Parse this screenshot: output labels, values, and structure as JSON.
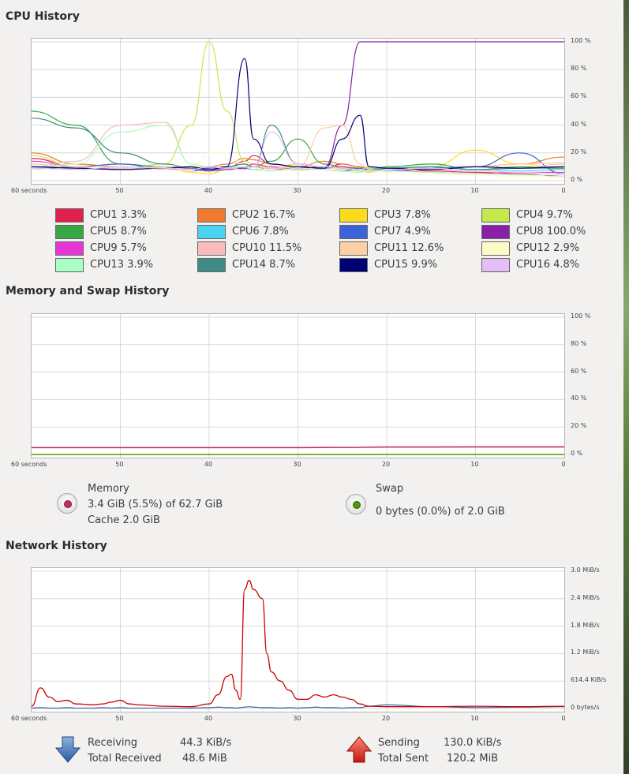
{
  "cpu": {
    "title": "CPU History",
    "y_ticks": [
      "100 %",
      "80 %",
      "60 %",
      "40 %",
      "20 %",
      "0 %"
    ],
    "x_ticks": [
      "60 seconds",
      "50",
      "40",
      "30",
      "20",
      "10",
      "0"
    ],
    "legend": [
      {
        "label": "CPU1  3.3%",
        "color": "#e0214b"
      },
      {
        "label": "CPU2  16.7%",
        "color": "#f07a30"
      },
      {
        "label": "CPU3  7.8%",
        "color": "#fbdc1c"
      },
      {
        "label": "CPU4  9.7%",
        "color": "#c5e84b"
      },
      {
        "label": "CPU5  8.7%",
        "color": "#35a845"
      },
      {
        "label": "CPU6  7.8%",
        "color": "#4ad3f0"
      },
      {
        "label": "CPU7  4.9%",
        "color": "#3c62d8"
      },
      {
        "label": "CPU8  100.0%",
        "color": "#8a20a8"
      },
      {
        "label": "CPU9  5.7%",
        "color": "#e836d6"
      },
      {
        "label": "CPU10  11.5%",
        "color": "#f9bcbc"
      },
      {
        "label": "CPU11  12.6%",
        "color": "#fccfa5"
      },
      {
        "label": "CPU12  2.9%",
        "color": "#fefac8"
      },
      {
        "label": "CPU13  3.9%",
        "color": "#aaffc3"
      },
      {
        "label": "CPU14  8.7%",
        "color": "#3f8c86"
      },
      {
        "label": "CPU15  9.9%",
        "color": "#000075"
      },
      {
        "label": "CPU16  4.8%",
        "color": "#e6bef7"
      }
    ]
  },
  "memory": {
    "title": "Memory and Swap History",
    "y_ticks": [
      "100 %",
      "80 %",
      "60 %",
      "40 %",
      "20 %",
      "0 %"
    ],
    "x_ticks": [
      "60 seconds",
      "50",
      "40",
      "30",
      "20",
      "10",
      "0"
    ],
    "memory_label": "Memory",
    "memory_value": "3.4 GiB (5.5%) of 62.7 GiB",
    "memory_cache": "Cache 2.0 GiB",
    "memory_color": "#c52a63",
    "swap_label": "Swap",
    "swap_value": "0 bytes (0.0%) of 2.0 GiB",
    "swap_color": "#4e9a06"
  },
  "network": {
    "title": "Network History",
    "y_ticks": [
      "3.0 MiB/s",
      "2.4 MiB/s",
      "1.8 MiB/s",
      "1.2 MiB/s",
      "614.4 KiB/s",
      "0 bytes/s"
    ],
    "x_ticks": [
      "60 seconds",
      "50",
      "40",
      "30",
      "20",
      "10",
      "0"
    ],
    "receiving_label": "Receiving",
    "receiving_value": "44.3 KiB/s",
    "total_received_label": "Total Received",
    "total_received_value": "48.6 MiB",
    "sending_label": "Sending",
    "sending_value": "130.0 KiB/s",
    "total_sent_label": "Total Sent",
    "total_sent_value": "120.2 MiB",
    "receive_color": "#3465a4",
    "send_color": "#cc0000"
  },
  "chart_data": [
    {
      "type": "line",
      "x": [
        60,
        55,
        50,
        45,
        42,
        40,
        38,
        36,
        35,
        33,
        30,
        27,
        25,
        23,
        22,
        20,
        15,
        10,
        5,
        0
      ],
      "ylim": [
        0,
        100
      ],
      "xlim": [
        60,
        0
      ],
      "series": [
        {
          "name": "CPU1",
          "values": [
            16,
            10,
            8,
            10,
            9,
            8,
            9,
            14,
            18,
            12,
            10,
            9,
            12,
            10,
            8,
            9,
            7,
            6,
            5,
            3
          ]
        },
        {
          "name": "CPU2",
          "values": [
            20,
            12,
            10,
            8,
            9,
            10,
            12,
            16,
            15,
            12,
            10,
            14,
            12,
            10,
            9,
            8,
            9,
            10,
            12,
            17
          ]
        },
        {
          "name": "CPU3",
          "values": [
            12,
            8,
            9,
            10,
            6,
            5,
            8,
            10,
            12,
            9,
            12,
            10,
            8,
            7,
            6,
            8,
            10,
            22,
            12,
            8
          ]
        },
        {
          "name": "CPU4",
          "values": [
            18,
            10,
            8,
            12,
            40,
            100,
            50,
            14,
            12,
            10,
            8,
            9,
            10,
            8,
            9,
            7,
            8,
            10,
            9,
            10
          ]
        },
        {
          "name": "CPU5",
          "values": [
            50,
            40,
            12,
            10,
            8,
            9,
            10,
            12,
            10,
            14,
            30,
            12,
            10,
            9,
            8,
            10,
            12,
            8,
            10,
            9
          ]
        },
        {
          "name": "CPU6",
          "values": [
            10,
            8,
            9,
            10,
            8,
            7,
            9,
            10,
            8,
            7,
            9,
            8,
            7,
            6,
            8,
            9,
            10,
            8,
            7,
            8
          ]
        },
        {
          "name": "CPU7",
          "values": [
            8,
            10,
            12,
            8,
            7,
            9,
            10,
            9,
            8,
            9,
            10,
            8,
            7,
            9,
            8,
            7,
            9,
            10,
            20,
            5
          ]
        },
        {
          "name": "CPU8",
          "values": [
            10,
            9,
            8,
            9,
            8,
            7,
            8,
            9,
            10,
            8,
            9,
            10,
            40,
            100,
            100,
            100,
            100,
            100,
            100,
            100
          ]
        },
        {
          "name": "CPU9",
          "values": [
            14,
            10,
            8,
            9,
            10,
            8,
            9,
            10,
            12,
            10,
            8,
            9,
            10,
            8,
            7,
            8,
            6,
            5,
            6,
            6
          ]
        },
        {
          "name": "CPU10",
          "values": [
            10,
            14,
            40,
            42,
            12,
            10,
            9,
            10,
            8,
            9,
            8,
            10,
            9,
            8,
            10,
            9,
            8,
            7,
            9,
            12
          ]
        },
        {
          "name": "CPU11",
          "values": [
            12,
            10,
            9,
            10,
            8,
            10,
            9,
            12,
            10,
            9,
            10,
            38,
            40,
            12,
            10,
            9,
            8,
            10,
            12,
            13
          ]
        },
        {
          "name": "CPU12",
          "values": [
            8,
            9,
            10,
            8,
            7,
            20,
            20,
            10,
            9,
            8,
            7,
            8,
            9,
            8,
            7,
            6,
            5,
            4,
            3,
            3
          ]
        },
        {
          "name": "CPU13",
          "values": [
            10,
            12,
            35,
            40,
            12,
            10,
            9,
            10,
            8,
            7,
            9,
            8,
            7,
            6,
            8,
            7,
            6,
            5,
            4,
            4
          ]
        },
        {
          "name": "CPU14",
          "values": [
            45,
            38,
            20,
            12,
            9,
            8,
            10,
            12,
            10,
            40,
            12,
            10,
            9,
            8,
            7,
            9,
            10,
            8,
            9,
            9
          ]
        },
        {
          "name": "CPU15",
          "values": [
            10,
            9,
            8,
            9,
            10,
            8,
            10,
            88,
            30,
            12,
            10,
            9,
            30,
            47,
            10,
            9,
            8,
            10,
            9,
            10
          ]
        },
        {
          "name": "CPU16",
          "values": [
            9,
            8,
            10,
            9,
            8,
            10,
            9,
            8,
            10,
            35,
            12,
            10,
            9,
            8,
            7,
            8,
            9,
            7,
            6,
            5
          ]
        }
      ]
    },
    {
      "type": "line",
      "x": [
        60,
        40,
        30,
        25,
        20,
        10,
        0
      ],
      "ylim": [
        0,
        100
      ],
      "xlim": [
        60,
        0
      ],
      "series": [
        {
          "name": "Memory",
          "values": [
            5.0,
            5.0,
            5.0,
            5.1,
            5.4,
            5.5,
            5.5
          ]
        },
        {
          "name": "Swap",
          "values": [
            0,
            0,
            0,
            0,
            0,
            0,
            0
          ]
        }
      ]
    },
    {
      "type": "line",
      "x": [
        60,
        59,
        58,
        57,
        56,
        55,
        53,
        52,
        51,
        50,
        49,
        48,
        45,
        42,
        40,
        39,
        38,
        37.5,
        37,
        36.5,
        36,
        35.5,
        35,
        34,
        33.5,
        33,
        32,
        31,
        30,
        29,
        28,
        27,
        26,
        25,
        24,
        23,
        22,
        20,
        15,
        10,
        5,
        0
      ],
      "ylim": [
        0,
        3.0
      ],
      "xlim": [
        60,
        0
      ],
      "series": [
        {
          "name": "Receiving",
          "values": [
            0.01,
            0.02,
            0.01,
            0.01,
            0.02,
            0.01,
            0.01,
            0.02,
            0.01,
            0.02,
            0.01,
            0.01,
            0.01,
            0.01,
            0.02,
            0.03,
            0.02,
            0.02,
            0.01,
            0.02,
            0.03,
            0.04,
            0.03,
            0.02,
            0.02,
            0.02,
            0.01,
            0.02,
            0.01,
            0.02,
            0.03,
            0.02,
            0.02,
            0.01,
            0.02,
            0.02,
            0.05,
            0.08,
            0.04,
            0.02,
            0.03,
            0.04
          ]
        },
        {
          "name": "Sending",
          "values": [
            0.05,
            0.45,
            0.25,
            0.15,
            0.18,
            0.1,
            0.08,
            0.1,
            0.14,
            0.18,
            0.1,
            0.08,
            0.05,
            0.04,
            0.1,
            0.3,
            0.7,
            0.75,
            0.4,
            0.2,
            2.6,
            2.8,
            2.6,
            2.4,
            1.2,
            0.8,
            0.6,
            0.4,
            0.2,
            0.2,
            0.3,
            0.25,
            0.3,
            0.25,
            0.2,
            0.1,
            0.05,
            0.04,
            0.04,
            0.05,
            0.04,
            0.05
          ]
        }
      ]
    }
  ]
}
